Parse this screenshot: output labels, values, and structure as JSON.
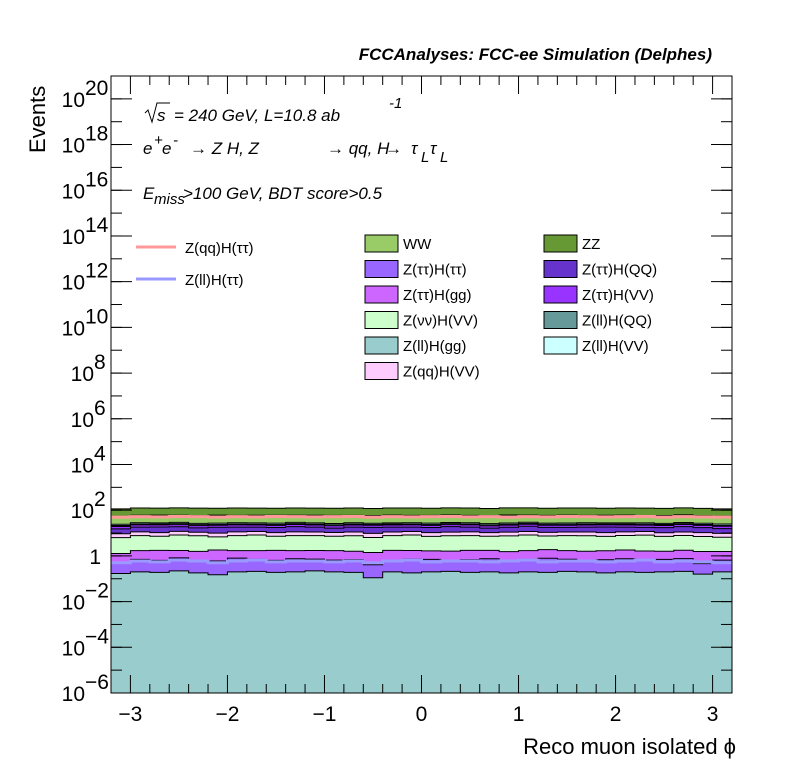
{
  "header": {
    "title": "FCCAnalyses: FCC-ee Simulation (Delphes)"
  },
  "annotations": {
    "energy_sqrt": "√s",
    "energy_rest": "= 240 GeV, L=10.8 ab",
    "lumi_exp": "-1",
    "process": {
      "part1": "e",
      "sup1": "+",
      "part2": "e",
      "sup2": "-",
      "arrow1": "→ Z H, Z",
      "arrow2": "→ qq, H",
      "arrow3": "→",
      "tau": "τ",
      "sub": "L"
    },
    "cut_E": "E",
    "cut_sub": "miss",
    "cut_rest": ">100 GeV, BDT score>0.5"
  },
  "colors": {
    "WW": "#99cc66",
    "ZZ": "#669933",
    "Z(ττ)H(ττ)": "#9966ff",
    "Z(ττ)H(QQ)": "#6633cc",
    "Z(ττ)H(gg)": "#cc66ff",
    "Z(ττ)H(VV)": "#9933ff",
    "Z(νν)H(VV)": "#ccffcc",
    "Z(ll)H(QQ)": "#669999",
    "Z(ll)H(gg)": "#99cccc",
    "Z(ll)H(VV)": "#ccffff",
    "Z(qq)H(VV)": "#ffccff",
    "signal_qq": "#ff9999",
    "signal_ll": "#9999ff"
  },
  "chart_data": {
    "type": "area",
    "title": "FCCAnalyses: FCC-ee Simulation (Delphes)",
    "xlabel": "Reco muon isolated ϕ",
    "ylabel": "Events",
    "xlim": [
      -3.2,
      3.2
    ],
    "ylim": [
      1e-06,
      1e+21
    ],
    "yscale": "log",
    "x_ticks": [
      "−3",
      "−2",
      "−1",
      "0",
      "1",
      "2",
      "3"
    ],
    "y_ticks": [
      {
        "base": "10",
        "exp": "−6",
        "value": 1e-06
      },
      {
        "base": "10",
        "exp": "−4",
        "value": 0.0001
      },
      {
        "base": "10",
        "exp": "−2",
        "value": 0.01
      },
      {
        "base": "1",
        "exp": "",
        "value": 1
      },
      {
        "base": "10",
        "exp": "2",
        "value": 100.0
      },
      {
        "base": "10",
        "exp": "4",
        "value": 10000.0
      },
      {
        "base": "10",
        "exp": "6",
        "value": 1000000.0
      },
      {
        "base": "10",
        "exp": "8",
        "value": 100000000.0
      },
      {
        "base": "10",
        "exp": "10",
        "value": 10000000000.0
      },
      {
        "base": "10",
        "exp": "12",
        "value": 1000000000000.0
      },
      {
        "base": "10",
        "exp": "14",
        "value": 100000000000000.0
      },
      {
        "base": "10",
        "exp": "16",
        "value": 1e+16
      },
      {
        "base": "10",
        "exp": "18",
        "value": 1e+18
      },
      {
        "base": "10",
        "exp": "20",
        "value": 1e+20
      }
    ],
    "bins": 32,
    "stack_totals": {
      "order_bottom_to_top": [
        "Z(ll)H(gg)",
        "Z(ττ)H(ττ)",
        "Z(ττ)H(gg)",
        "Z(νν)H(VV)",
        "Z(qq)H(VV)",
        "Z(ττ)H(QQ)",
        "Z(ττ)H(VV)",
        "Z(ll)H(QQ)",
        "Z(ll)H(VV)",
        "WW",
        "ZZ"
      ],
      "series": [
        {
          "name": "Z(ll)H(gg)",
          "values": [
            0.17,
            0.2,
            0.19,
            0.22,
            0.18,
            0.15,
            0.2,
            0.21,
            0.19,
            0.2,
            0.22,
            0.2,
            0.19,
            0.11,
            0.2,
            0.18,
            0.2,
            0.21,
            0.19,
            0.2,
            0.18,
            0.2,
            0.19,
            0.21,
            0.2,
            0.18,
            0.2,
            0.19,
            0.2,
            0.21,
            0.16,
            0.2
          ]
        },
        {
          "name": "Z(ττ)H(ττ)",
          "values": [
            0.3,
            0.5,
            0.45,
            0.6,
            0.4,
            0.45,
            0.6,
            0.5,
            0.45,
            0.55,
            0.5,
            0.45,
            0.5,
            0.3,
            0.45,
            0.55,
            0.5,
            0.4,
            0.5,
            0.55,
            0.45,
            0.5,
            0.6,
            0.5,
            0.45,
            0.5,
            0.55,
            0.45,
            0.5,
            0.55,
            0.3,
            0.45
          ]
        },
        {
          "name": "Z(ττ)H(gg)",
          "values": [
            0.8,
            1.0,
            1.1,
            0.9,
            1.0,
            1.2,
            0.9,
            1.0,
            1.1,
            0.95,
            1.0,
            1.05,
            0.9,
            1.0,
            1.1,
            1.0,
            0.95,
            1.0,
            1.05,
            1.0,
            0.9,
            1.0,
            1.1,
            1.0,
            0.95,
            1.0,
            1.05,
            1.0,
            0.9,
            1.0,
            1.1,
            0.9
          ]
        },
        {
          "name": "Z(νν)H(VV)",
          "values": [
            5,
            6,
            5.5,
            6.5,
            6,
            5,
            6,
            6.5,
            5.5,
            6,
            6,
            5.5,
            6,
            5,
            6,
            6.5,
            5.5,
            6,
            6,
            5.5,
            6,
            6.5,
            5.5,
            6,
            6,
            5.5,
            6,
            6.5,
            5.5,
            6,
            5.5,
            5
          ]
        },
        {
          "name": "Z(qq)H(VV)",
          "values": [
            3,
            3.5,
            3.2,
            3.6,
            3.3,
            3.1,
            3.5,
            3.4,
            3.2,
            3.5,
            3.4,
            3.3,
            3.5,
            3.2,
            3.4,
            3.5,
            3.3,
            3.4,
            3.5,
            3.2,
            3.4,
            3.5,
            3.3,
            3.4,
            3.5,
            3.3,
            3.4,
            3.5,
            3.2,
            3.4,
            3.3,
            3.1
          ]
        },
        {
          "name": "Z(ττ)H(QQ)",
          "values": [
            6,
            7,
            8,
            7,
            6,
            8,
            7,
            6.5,
            7,
            8,
            7,
            6,
            7,
            8,
            7,
            6.5,
            7,
            8,
            7,
            6,
            7,
            8,
            7,
            6.5,
            7,
            8,
            7,
            6,
            7,
            8,
            7,
            6
          ]
        },
        {
          "name": "Z(ττ)H(VV)",
          "values": [
            4,
            4.5,
            4.2,
            4.6,
            4.3,
            4.1,
            4.5,
            4.4,
            4.2,
            4.5,
            4.4,
            4.3,
            4.5,
            4.2,
            4.4,
            4.5,
            4.3,
            4.4,
            4.5,
            4.2,
            4.4,
            4.5,
            4.3,
            4.4,
            4.5,
            4.3,
            4.4,
            4.5,
            4.2,
            4.4,
            4.3,
            4.1
          ]
        },
        {
          "name": "Z(ll)H(QQ)",
          "values": [
            2,
            2.2,
            2.1,
            2.3,
            2.2,
            2.0,
            2.2,
            2.1,
            2.3,
            2.2,
            2.1,
            2.2,
            2.3,
            2.0,
            2.2,
            2.1,
            2.2,
            2.3,
            2.1,
            2.2,
            2.0,
            2.2,
            2.1,
            2.3,
            2.2,
            2.1,
            2.2,
            2.3,
            2.0,
            2.2,
            2.1,
            2.0
          ]
        },
        {
          "name": "Z(ll)H(VV)",
          "values": [
            3,
            3.3,
            3.1,
            3.4,
            3.2,
            3.0,
            3.3,
            3.2,
            3.1,
            3.3,
            3.2,
            3.1,
            3.3,
            3.0,
            3.2,
            3.3,
            3.1,
            3.2,
            3.3,
            3.0,
            3.2,
            3.3,
            3.1,
            3.2,
            3.3,
            3.1,
            3.2,
            3.3,
            3.0,
            3.2,
            3.1,
            3.0
          ]
        },
        {
          "name": "WW",
          "values": [
            30,
            32,
            33,
            31,
            32,
            34,
            31,
            32,
            33,
            31,
            32,
            33,
            31,
            32,
            33,
            31,
            32,
            33,
            31,
            32,
            34,
            31,
            32,
            33,
            31,
            32,
            33,
            31,
            32,
            33,
            31,
            30
          ]
        },
        {
          "name": "ZZ",
          "values": [
            60,
            65,
            62,
            66,
            64,
            60,
            65,
            63,
            61,
            65,
            64,
            62,
            65,
            60,
            64,
            65,
            62,
            64,
            65,
            61,
            64,
            65,
            62,
            64,
            65,
            62,
            64,
            65,
            61,
            64,
            62,
            60
          ]
        }
      ]
    },
    "signals": [
      {
        "name": "Z(qq)H(ττ)",
        "values": [
          50,
          52,
          51,
          53,
          52,
          50,
          52,
          51,
          53,
          52,
          51,
          52,
          53,
          50,
          52,
          51,
          52,
          53,
          51,
          52,
          50,
          52,
          51,
          53,
          52,
          51,
          52,
          53,
          50,
          52,
          51,
          50
        ]
      },
      {
        "name": "Z(ll)H(ττ)",
        "values": [
          0.5,
          0.6,
          0.55,
          0.65,
          0.6,
          0.5,
          0.6,
          0.65,
          0.55,
          0.6,
          0.6,
          0.55,
          0.6,
          0.5,
          0.6,
          0.65,
          0.55,
          0.6,
          0.6,
          0.55,
          0.6,
          0.65,
          0.55,
          0.6,
          0.6,
          0.55,
          0.6,
          0.65,
          0.55,
          0.6,
          0.55,
          0.5
        ]
      }
    ],
    "legend": {
      "lines": [
        "Z(qq)H(ττ)",
        "Z(ll)H(ττ)"
      ],
      "boxes_col1": [
        "WW",
        "Z(ττ)H(ττ)",
        "Z(ττ)H(gg)",
        "Z(νν)H(VV)",
        "Z(ll)H(gg)",
        "Z(qq)H(VV)"
      ],
      "boxes_col2": [
        "ZZ",
        "Z(ττ)H(QQ)",
        "Z(ττ)H(VV)",
        "Z(ll)H(QQ)",
        "Z(ll)H(VV)"
      ]
    }
  }
}
